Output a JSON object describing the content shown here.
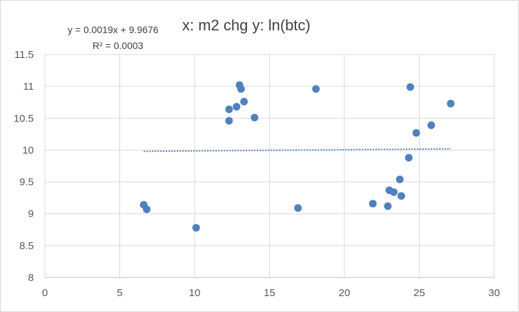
{
  "chart_data": {
    "type": "scatter",
    "title": "x: m2 chg y: ln(btc)",
    "xlabel": "",
    "ylabel": "",
    "xlim": [
      0,
      30
    ],
    "ylim": [
      8,
      11.5
    ],
    "xticks": [
      0,
      5,
      10,
      15,
      20,
      25,
      30
    ],
    "yticks": [
      8,
      8.5,
      9,
      9.5,
      10,
      10.5,
      11,
      11.5
    ],
    "grid": true,
    "point_color": "#4f81bd",
    "trendline": {
      "type": "linear",
      "style": "dotted",
      "slope": 0.0019,
      "intercept": 9.9676,
      "x_range": [
        6.6,
        27.1
      ],
      "equation_label": "y = 0.0019x + 9.9676",
      "r2_label": "R² = 0.0003"
    },
    "points": [
      {
        "x": 6.6,
        "y": 9.14
      },
      {
        "x": 6.8,
        "y": 9.07
      },
      {
        "x": 10.1,
        "y": 8.78
      },
      {
        "x": 12.3,
        "y": 10.64
      },
      {
        "x": 12.3,
        "y": 10.46
      },
      {
        "x": 12.8,
        "y": 10.68
      },
      {
        "x": 13.0,
        "y": 11.02
      },
      {
        "x": 13.1,
        "y": 10.96
      },
      {
        "x": 13.3,
        "y": 10.76
      },
      {
        "x": 14.0,
        "y": 10.51
      },
      {
        "x": 16.9,
        "y": 9.09
      },
      {
        "x": 18.1,
        "y": 10.96
      },
      {
        "x": 21.9,
        "y": 9.16
      },
      {
        "x": 22.9,
        "y": 9.12
      },
      {
        "x": 23.0,
        "y": 9.37
      },
      {
        "x": 23.3,
        "y": 9.34
      },
      {
        "x": 23.7,
        "y": 9.54
      },
      {
        "x": 23.8,
        "y": 9.28
      },
      {
        "x": 24.3,
        "y": 9.88
      },
      {
        "x": 24.4,
        "y": 10.99
      },
      {
        "x": 24.8,
        "y": 10.27
      },
      {
        "x": 25.8,
        "y": 10.39
      },
      {
        "x": 27.1,
        "y": 10.73
      }
    ]
  }
}
